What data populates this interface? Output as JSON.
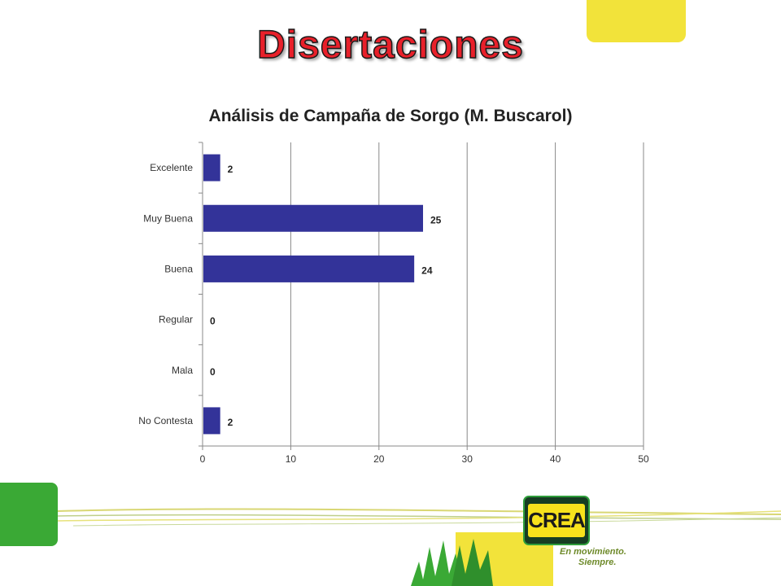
{
  "slide": {
    "title": "Disertaciones",
    "logo_text": "CREA",
    "slogan_line1": "En movimiento.",
    "slogan_line2": "Siempre."
  },
  "colors": {
    "bar": "#333399",
    "title_red": "#e8202a",
    "brand_yellow": "#f2e33a",
    "brand_green": "#3aa935"
  },
  "chart_data": {
    "type": "bar",
    "orientation": "horizontal",
    "title": "Análisis de Campaña de Sorgo (M. Buscarol)",
    "xlabel": "",
    "ylabel": "",
    "categories": [
      "Excelente",
      "Muy Buena",
      "Buena",
      "Regular",
      "Mala",
      "No Contesta"
    ],
    "values": [
      2,
      25,
      24,
      0,
      0,
      2
    ],
    "xlim": [
      0,
      50
    ],
    "xticks": [
      0,
      10,
      20,
      30,
      40,
      50
    ],
    "grid": "vertical",
    "legend": "none",
    "data_labels": true
  }
}
